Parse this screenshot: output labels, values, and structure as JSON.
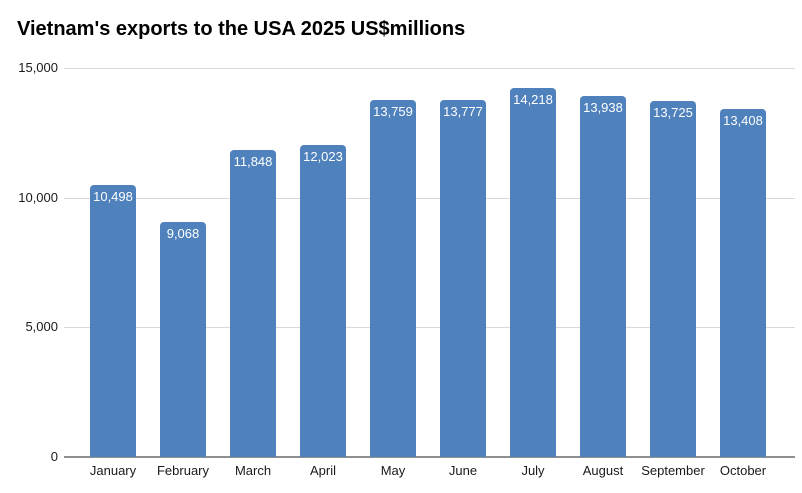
{
  "title": "Vietnam's exports to the USA 2025 US$millions",
  "chart_data": {
    "type": "bar",
    "title": "Vietnam's exports to the USA 2025 US$millions",
    "categories": [
      "January",
      "February",
      "March",
      "April",
      "May",
      "June",
      "July",
      "August",
      "September",
      "October"
    ],
    "values": [
      10498,
      9068,
      11848,
      12023,
      13759,
      13777,
      14218,
      13938,
      13725,
      13408
    ],
    "value_labels": [
      "10,498",
      "9,068",
      "11,848",
      "12,023",
      "13,759",
      "13,777",
      "14,218",
      "13,938",
      "13,725",
      "13,408"
    ],
    "xlabel": "",
    "ylabel": "",
    "ylim": [
      0,
      15000
    ],
    "yticks": [
      0,
      5000,
      10000,
      15000
    ],
    "ytick_labels": [
      "0",
      "5,000",
      "10,000",
      "15,000"
    ],
    "grid": true,
    "legend": "none",
    "colors": {
      "bar": "#4f81bc",
      "bar_value_label": "#ffffff",
      "gridline": "#d9d9d9",
      "axis_line": "#8f8f8f",
      "tick_label": "#1a1a1a",
      "title": "#000000",
      "background": "#ffffff"
    }
  }
}
